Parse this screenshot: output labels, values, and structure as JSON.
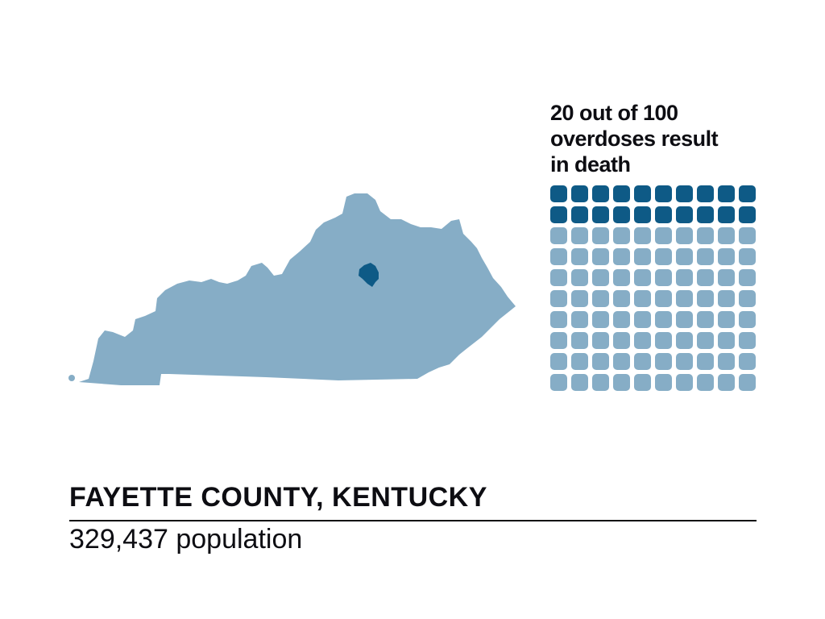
{
  "headline": {
    "line1": "20 out of 100",
    "line2": "overdoses result",
    "line3": "in death"
  },
  "waffle": {
    "filled": 20,
    "total": 100,
    "filled_color": "#0e5a86",
    "empty_color": "#86adc6"
  },
  "map": {
    "state_color": "#86adc6",
    "county_color": "#0e5a86"
  },
  "footer": {
    "title": "FAYETTE COUNTY, KENTUCKY",
    "population": "329,437 population"
  }
}
